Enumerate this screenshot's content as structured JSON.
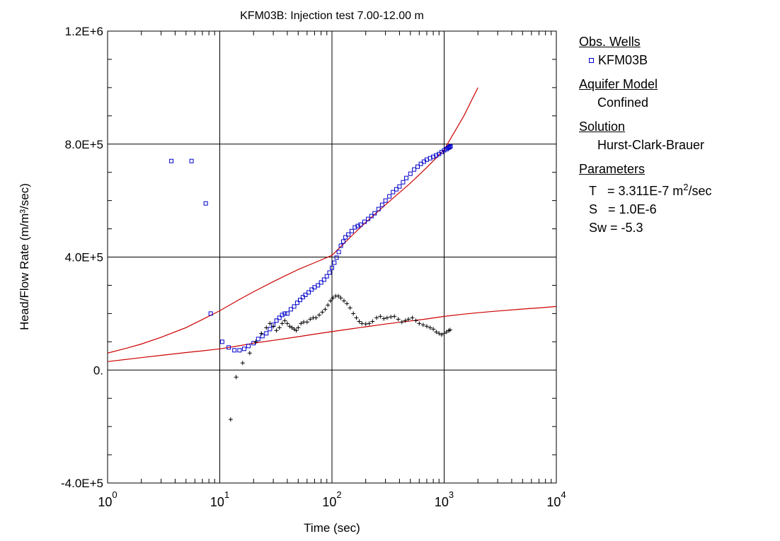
{
  "chart_data": {
    "type": "scatter",
    "title": "KFM03B: Injection test 7.00-12.00 m",
    "xlabel": "Time (sec)",
    "ylabel": "Head/Flow Rate (m/m³/sec)",
    "xscale": "log",
    "xlim": [
      1,
      10000
    ],
    "ylim": [
      -400000,
      1200000
    ],
    "x_ticks": [
      {
        "value": 1,
        "base": "10",
        "exp": "0"
      },
      {
        "value": 10,
        "base": "10",
        "exp": "1"
      },
      {
        "value": 100,
        "base": "10",
        "exp": "2"
      },
      {
        "value": 1000,
        "base": "10",
        "exp": "3"
      },
      {
        "value": 10000,
        "base": "10",
        "exp": "4"
      }
    ],
    "y_ticks": [
      {
        "value": -400000,
        "label": "-4.0E+5"
      },
      {
        "value": 0,
        "label": "0."
      },
      {
        "value": 400000,
        "label": "4.0E+5"
      },
      {
        "value": 800000,
        "label": "8.0E+5"
      },
      {
        "value": 1200000,
        "label": "1.2E+6"
      }
    ],
    "grid": true,
    "legend_position": "right",
    "series": [
      {
        "name": "KFM03B",
        "marker": "square",
        "color": "#0000cc",
        "x": [
          3.7,
          5.6,
          7.5,
          8.3,
          10.5,
          12.0,
          13.5,
          15.0,
          16.5,
          18.0,
          20.0,
          22.0,
          24.0,
          26.0,
          28.0,
          30.0,
          32.0,
          34.0,
          36.0,
          38.0,
          40.0,
          43.0,
          46.0,
          49.0,
          52.0,
          55.0,
          58.0,
          62.0,
          66.0,
          70.0,
          75.0,
          80.0,
          85.0,
          90.0,
          95.0,
          100.0,
          105.0,
          110.0,
          115.0,
          120.0,
          126.0,
          132.0,
          140.0,
          150.0,
          160.0,
          170.0,
          180.0,
          195.0,
          210.0,
          225.0,
          240.0,
          260.0,
          280.0,
          300.0,
          325.0,
          350.0,
          375.0,
          400.0,
          430.0,
          460.0,
          500.0,
          540.0,
          580.0,
          620.0,
          660.0,
          700.0,
          750.0,
          800.0,
          850.0,
          900.0,
          950.0,
          1000.0,
          1050.0,
          1080.0,
          1100.0,
          1120.0,
          1140.0
        ],
        "y": [
          740000,
          740000,
          590000,
          200000,
          100000,
          80000,
          70000,
          70000,
          75000,
          85000,
          95000,
          110000,
          120000,
          130000,
          145000,
          160000,
          175000,
          185000,
          195000,
          200000,
          200000,
          215000,
          225000,
          238000,
          248000,
          258000,
          266000,
          275000,
          285000,
          293000,
          300000,
          310000,
          320000,
          332000,
          345000,
          362000,
          380000,
          398000,
          418000,
          440000,
          455000,
          470000,
          480000,
          492000,
          505000,
          510000,
          515000,
          525000,
          535000,
          545000,
          555000,
          570000,
          585000,
          600000,
          615000,
          630000,
          640000,
          650000,
          665000,
          680000,
          695000,
          710000,
          720000,
          730000,
          738000,
          745000,
          750000,
          755000,
          760000,
          765000,
          772000,
          778000,
          782000,
          786000,
          788000,
          790000,
          792000
        ]
      },
      {
        "name": "",
        "marker": "plus",
        "color": "#000000",
        "x": [
          12.5,
          14.0,
          16.0,
          18.5,
          21.0,
          23.5,
          26.0,
          28.0,
          30.0,
          32.0,
          34.0,
          36.0,
          38.0,
          40.0,
          42.0,
          44.0,
          46.0,
          48.0,
          50.0,
          53.0,
          56.0,
          60.0,
          64.0,
          68.0,
          72.0,
          77.0,
          82.0,
          87.0,
          92.0,
          97.0,
          102.0,
          108.0,
          114.0,
          120.0,
          128.0,
          136.0,
          145.0,
          155.0,
          165.0,
          175.0,
          185.0,
          200.0,
          215.0,
          230.0,
          250.0,
          270.0,
          290.0,
          310.0,
          335.0,
          360.0,
          390.0,
          420.0,
          450.0,
          480.0,
          520.0,
          560.0,
          600.0,
          650.0,
          700.0,
          750.0,
          800.0,
          850.0,
          900.0,
          950.0,
          1000.0,
          1050.0,
          1100.0,
          1130.0
        ],
        "y": [
          -175000,
          -25000,
          25000,
          60000,
          100000,
          130000,
          150000,
          165000,
          155000,
          140000,
          150000,
          165000,
          175000,
          165000,
          155000,
          150000,
          145000,
          140000,
          150000,
          165000,
          170000,
          170000,
          180000,
          185000,
          185000,
          195000,
          205000,
          215000,
          230000,
          245000,
          255000,
          262000,
          262000,
          255000,
          245000,
          235000,
          220000,
          200000,
          185000,
          172000,
          165000,
          163000,
          165000,
          172000,
          185000,
          190000,
          182000,
          185000,
          188000,
          190000,
          180000,
          170000,
          175000,
          180000,
          185000,
          175000,
          165000,
          160000,
          155000,
          150000,
          145000,
          135000,
          130000,
          125000,
          130000,
          135000,
          140000,
          142000
        ]
      }
    ],
    "curves": [
      {
        "color": "#cc0000",
        "x": [
          1,
          1.5,
          2,
          3,
          5,
          7,
          10,
          15,
          20,
          30,
          50,
          70,
          100,
          150,
          200,
          300,
          500,
          700,
          1000,
          1500,
          2000
        ],
        "y": [
          60000,
          78000,
          92000,
          116000,
          150000,
          179000,
          210000,
          250000,
          277000,
          313000,
          356000,
          380000,
          406000,
          475000,
          523000,
          585000,
          662000,
          717000,
          780000,
          900000,
          1000000
        ]
      },
      {
        "color": "#cc0000",
        "x": [
          1,
          2,
          3,
          5,
          7,
          10,
          15,
          20,
          30,
          50,
          70,
          100,
          150,
          200,
          300,
          500,
          700,
          1000,
          1500,
          2000,
          3000,
          5000,
          7000,
          10000
        ],
        "y": [
          30000,
          44000,
          52000,
          62000,
          68000,
          75000,
          86000,
          95000,
          105000,
          118000,
          127000,
          136000,
          146000,
          153000,
          163000,
          174000,
          181000,
          190000,
          198000,
          203000,
          209000,
          216000,
          220000,
          225000
        ]
      }
    ]
  },
  "legend": {
    "obs_wells_label": "Obs. Wells",
    "well_name": "KFM03B",
    "aquifer_model_label": "Aquifer Model",
    "aquifer_model": "Confined",
    "solution_label": "Solution",
    "solution": "Hurst-Clark-Brauer",
    "parameters_label": "Parameters",
    "param_T_name": "T",
    "param_T_value": "= 3.311E-7 m",
    "param_T_exp": "2",
    "param_T_unit": "/sec",
    "param_S_name": "S",
    "param_S_value": "= 1.0E-6",
    "param_Sw_name": "Sw",
    "param_Sw_value": "= -5.3"
  }
}
